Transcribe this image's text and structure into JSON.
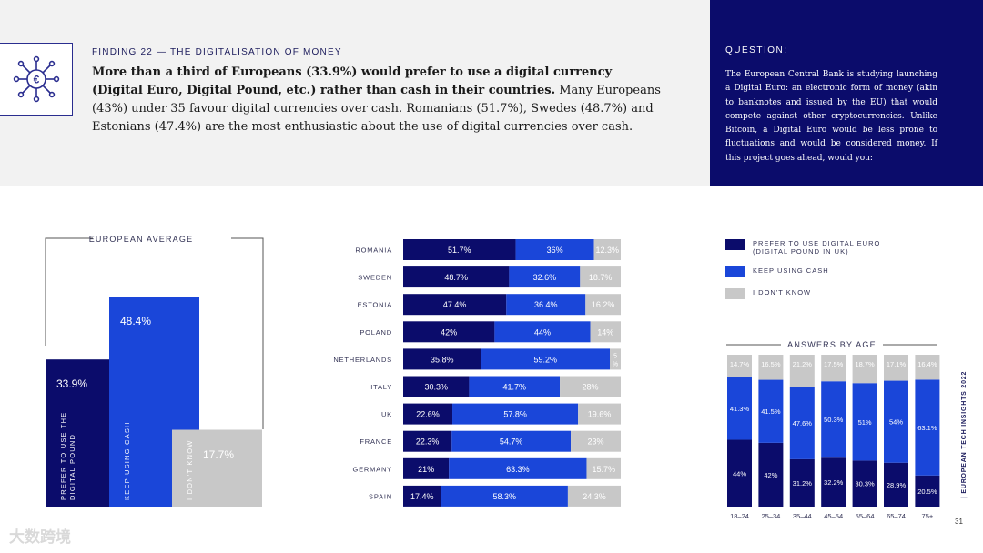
{
  "header": {
    "finding_label": "FINDING 22 — THE DIGITALISATION OF MONEY",
    "finding_bold": "More than a third of Europeans (33.9%) would prefer to use a digital currency (Digital Euro, Digital Pound, etc.) rather than cash in their countries.",
    "finding_rest": " Many Europeans (43%) under 35 favour digital currencies over cash. Romanians (51.7%), Swedes (48.7%) and Estonians (47.4%) are the most enthusiastic about the use of digital currencies over cash."
  },
  "question": {
    "title": "QUESTION:",
    "text": "The European Central Bank is studying launching a Digital Euro: an electronic form of money (akin to banknotes and issued by the EU) that would compete against other cryptocurrencies. Unlike Bitcoin, a Digital Euro would be less prone to fluctuations and would be considered money. If this project goes ahead, would you:"
  },
  "colors": {
    "dark": "#0b0c6b",
    "blue": "#1a46d9",
    "grey": "#c8c8c8"
  },
  "legend": [
    {
      "label_line1": "PREFER TO USE DIGITAL EURO",
      "label_line2": "(DIGITAL POUND IN UK)",
      "color": "#0b0c6b"
    },
    {
      "label_line1": "KEEP USING CASH",
      "label_line2": "",
      "color": "#1a46d9"
    },
    {
      "label_line1": "I DON'T KNOW",
      "label_line2": "",
      "color": "#c8c8c8"
    }
  ],
  "average": {
    "title": "EUROPEAN AVERAGE",
    "bars": [
      {
        "value": 33.9,
        "display": "33.9%",
        "label_line1": "PREFER TO USE THE",
        "label_line2": "DIGITAL POUND"
      },
      {
        "value": 48.4,
        "display": "48.4%",
        "label_line1": "KEEP USING CASH",
        "label_line2": ""
      },
      {
        "value": 17.7,
        "display": "17.7%",
        "label_line1": "I DON'T KNOW",
        "label_line2": ""
      }
    ]
  },
  "chart_data": [
    {
      "type": "bar",
      "orientation": "horizontal",
      "stacked": true,
      "title": "",
      "categories": [
        "ROMANIA",
        "SWEDEN",
        "ESTONIA",
        "POLAND",
        "NETHERLANDS",
        "ITALY",
        "UK",
        "FRANCE",
        "GERMANY",
        "SPAIN"
      ],
      "series": [
        {
          "name": "PREFER TO USE DIGITAL EURO",
          "values": [
            51.7,
            48.7,
            47.4,
            42,
            35.8,
            30.3,
            22.6,
            22.3,
            21,
            17.4
          ],
          "labels": [
            "51.7%",
            "48.7%",
            "47.4%",
            "42%",
            "35.8%",
            "30.3%",
            "22.6%",
            "22.3%",
            "21%",
            "17.4%"
          ]
        },
        {
          "name": "KEEP USING CASH",
          "values": [
            36,
            32.6,
            36.4,
            44,
            59.2,
            41.7,
            57.8,
            54.7,
            63.3,
            58.3
          ],
          "labels": [
            "36%",
            "32.6%",
            "36.4%",
            "44%",
            "59.2%",
            "41.7%",
            "57.8%",
            "54.7%",
            "63.3%",
            "58.3%"
          ]
        },
        {
          "name": "I DON'T KNOW",
          "values": [
            12.3,
            18.7,
            16.2,
            14,
            5,
            28,
            19.6,
            23,
            15.7,
            24.3
          ],
          "labels": [
            "12.3%",
            "18.7%",
            "16.2%",
            "14%",
            "5%",
            "28%",
            "19.6%",
            "23%",
            "15.7%",
            "24.3%"
          ]
        }
      ]
    },
    {
      "type": "bar",
      "orientation": "vertical",
      "stacked": true,
      "title": "ANSWERS BY AGE",
      "categories": [
        "18–24",
        "25–34",
        "35–44",
        "45–54",
        "55–64",
        "65–74",
        "75+"
      ],
      "series": [
        {
          "name": "PREFER TO USE DIGITAL EURO",
          "values": [
            44,
            42,
            31.2,
            32.2,
            30.3,
            28.9,
            20.5
          ],
          "labels": [
            "44%",
            "42%",
            "31.2%",
            "32.2%",
            "30.3%",
            "28.9%",
            "20.5%"
          ]
        },
        {
          "name": "KEEP USING CASH",
          "values": [
            41.3,
            41.5,
            47.6,
            50.3,
            51,
            54,
            63.1
          ],
          "labels": [
            "41.3%",
            "41.5%",
            "47.6%",
            "50.3%",
            "51%",
            "54%",
            "63.1%"
          ]
        },
        {
          "name": "I DON'T KNOW",
          "values": [
            14.7,
            16.5,
            21.2,
            17.5,
            18.7,
            17.1,
            16.4
          ],
          "labels": [
            "14.7%",
            "16.5%",
            "21.2%",
            "17.5%",
            "18.7%",
            "17.1%",
            "16.4%"
          ]
        }
      ]
    }
  ],
  "footer": {
    "side_label_bold": "EUROPEAN TECH INSIGHTS 2022",
    "page_number": "31",
    "watermark": "大数跨境"
  }
}
